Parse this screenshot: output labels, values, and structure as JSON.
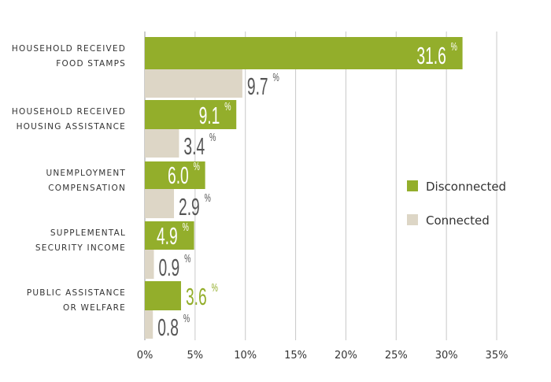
{
  "chart_data": {
    "type": "bar",
    "orientation": "horizontal",
    "categories": [
      [
        "HOUSEHOLD RECEIVED",
        "FOOD STAMPS"
      ],
      [
        "HOUSEHOLD RECEIVED",
        "HOUSING ASSISTANCE"
      ],
      [
        "UNEMPLOYMENT",
        "COMPENSATION"
      ],
      [
        "SUPPLEMENTAL",
        "SECURITY INCOME"
      ],
      [
        "PUBLIC ASSISTANCE",
        "OR WELFARE"
      ]
    ],
    "series": [
      {
        "name": "Disconnected",
        "color": "#93ae2b",
        "values": [
          31.6,
          9.1,
          6.0,
          4.9,
          3.6
        ],
        "labels": [
          "31.6",
          "9.1",
          "6.0",
          "4.9",
          "3.6"
        ]
      },
      {
        "name": "Connected",
        "color": "#ddd6c6",
        "values": [
          9.7,
          3.4,
          2.9,
          0.9,
          0.8
        ],
        "labels": [
          "9.7",
          "3.4",
          "2.9",
          "0.9",
          "0.8"
        ]
      }
    ],
    "xlim": [
      0,
      35
    ],
    "xticks": [
      "0%",
      "5%",
      "10%",
      "15%",
      "20%",
      "25%",
      "30%",
      "35%"
    ],
    "grid": "vertical",
    "legend": "right",
    "unit_symbol": "%"
  }
}
